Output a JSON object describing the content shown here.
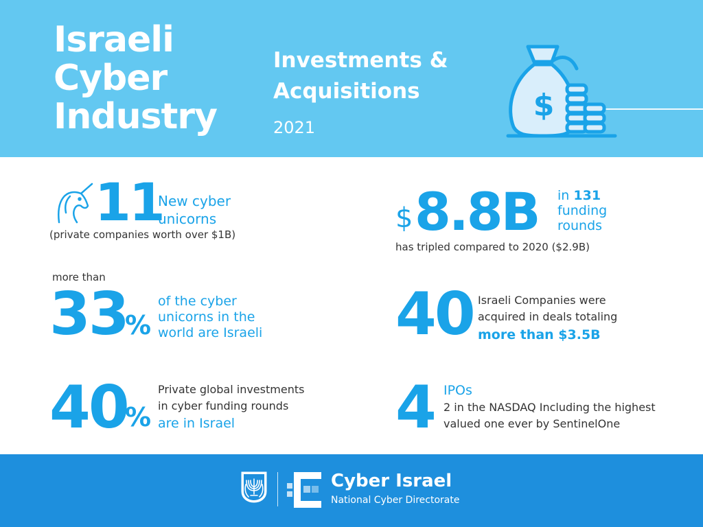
{
  "header": {
    "title_lines": [
      "Israeli",
      "Cyber",
      "Industry"
    ],
    "subtitle_lines": [
      "Investments &",
      "Acquisitions"
    ],
    "year": "2021",
    "icon": "money-bag-icon"
  },
  "stats": {
    "unicorns": {
      "icon": "unicorn-icon",
      "number": "11",
      "label_lines": [
        "New cyber",
        "unicorns"
      ],
      "note": "(private companies worth over $1B)"
    },
    "funding": {
      "currency": "$",
      "number": "8.8B",
      "label_prefix": "in",
      "label_count": "131",
      "label_lines": [
        "funding",
        "rounds"
      ],
      "note": "has tripled compared to 2020 ($2.9B)"
    },
    "unicorn_share": {
      "prefix": "more than",
      "number": "33",
      "unit": "%",
      "label_lines": [
        "of the cyber",
        "unicorns in the",
        "world are Israeli"
      ]
    },
    "acquisitions": {
      "number": "40",
      "label_lines": [
        "Israeli Companies were",
        "acquired in deals totaling"
      ],
      "highlight": "more than $3.5B"
    },
    "investment_share": {
      "number": "40",
      "unit": "%",
      "label_lines": [
        "Private global investments",
        "in cyber funding rounds"
      ],
      "highlight": "are in Israel"
    },
    "ipos": {
      "number": "4",
      "title": "IPOs",
      "detail_lines": [
        "2 in the NASDAQ Including the highest",
        "valued one ever by SentinelOne"
      ]
    }
  },
  "footer": {
    "emblem_icon": "state-emblem-icon",
    "logo_icon": "cyber-israel-logo-icon",
    "title": "Cyber Israel",
    "subtitle": "National Cyber Directorate"
  },
  "colors": {
    "header_bg": "#63c8f1",
    "accent": "#1aa3e8",
    "footer_bg": "#1e8fdd"
  }
}
